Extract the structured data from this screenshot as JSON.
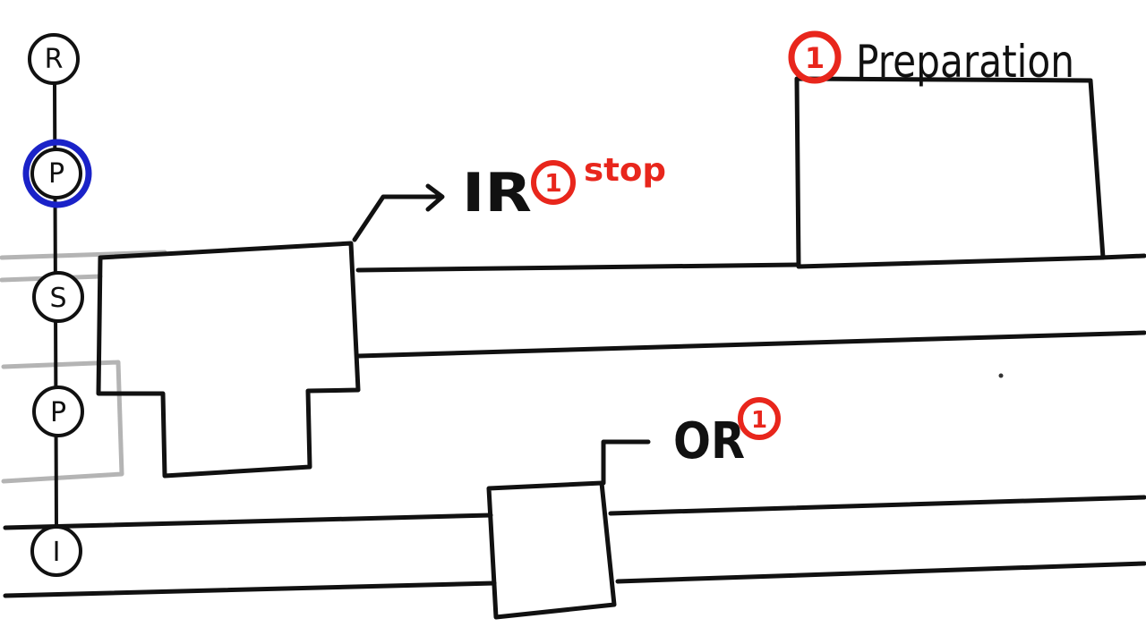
{
  "colors": {
    "ink": "#111111",
    "red": "#e8261c",
    "blue": "#1a22c8",
    "grey": "#b4b4b4"
  },
  "nav": {
    "nodes": [
      {
        "label": "R",
        "state": "default"
      },
      {
        "label": "P",
        "state": "selected"
      },
      {
        "label": "S",
        "state": "default"
      },
      {
        "label": "P",
        "state": "default"
      },
      {
        "label": "I",
        "state": "default"
      }
    ]
  },
  "labels": {
    "preparation": {
      "badge": "1",
      "text": "Preparation"
    },
    "ir": {
      "prefix": "IR",
      "badge": "1",
      "suffix": "stop"
    },
    "or": {
      "prefix": "OR",
      "badge": "1"
    }
  }
}
